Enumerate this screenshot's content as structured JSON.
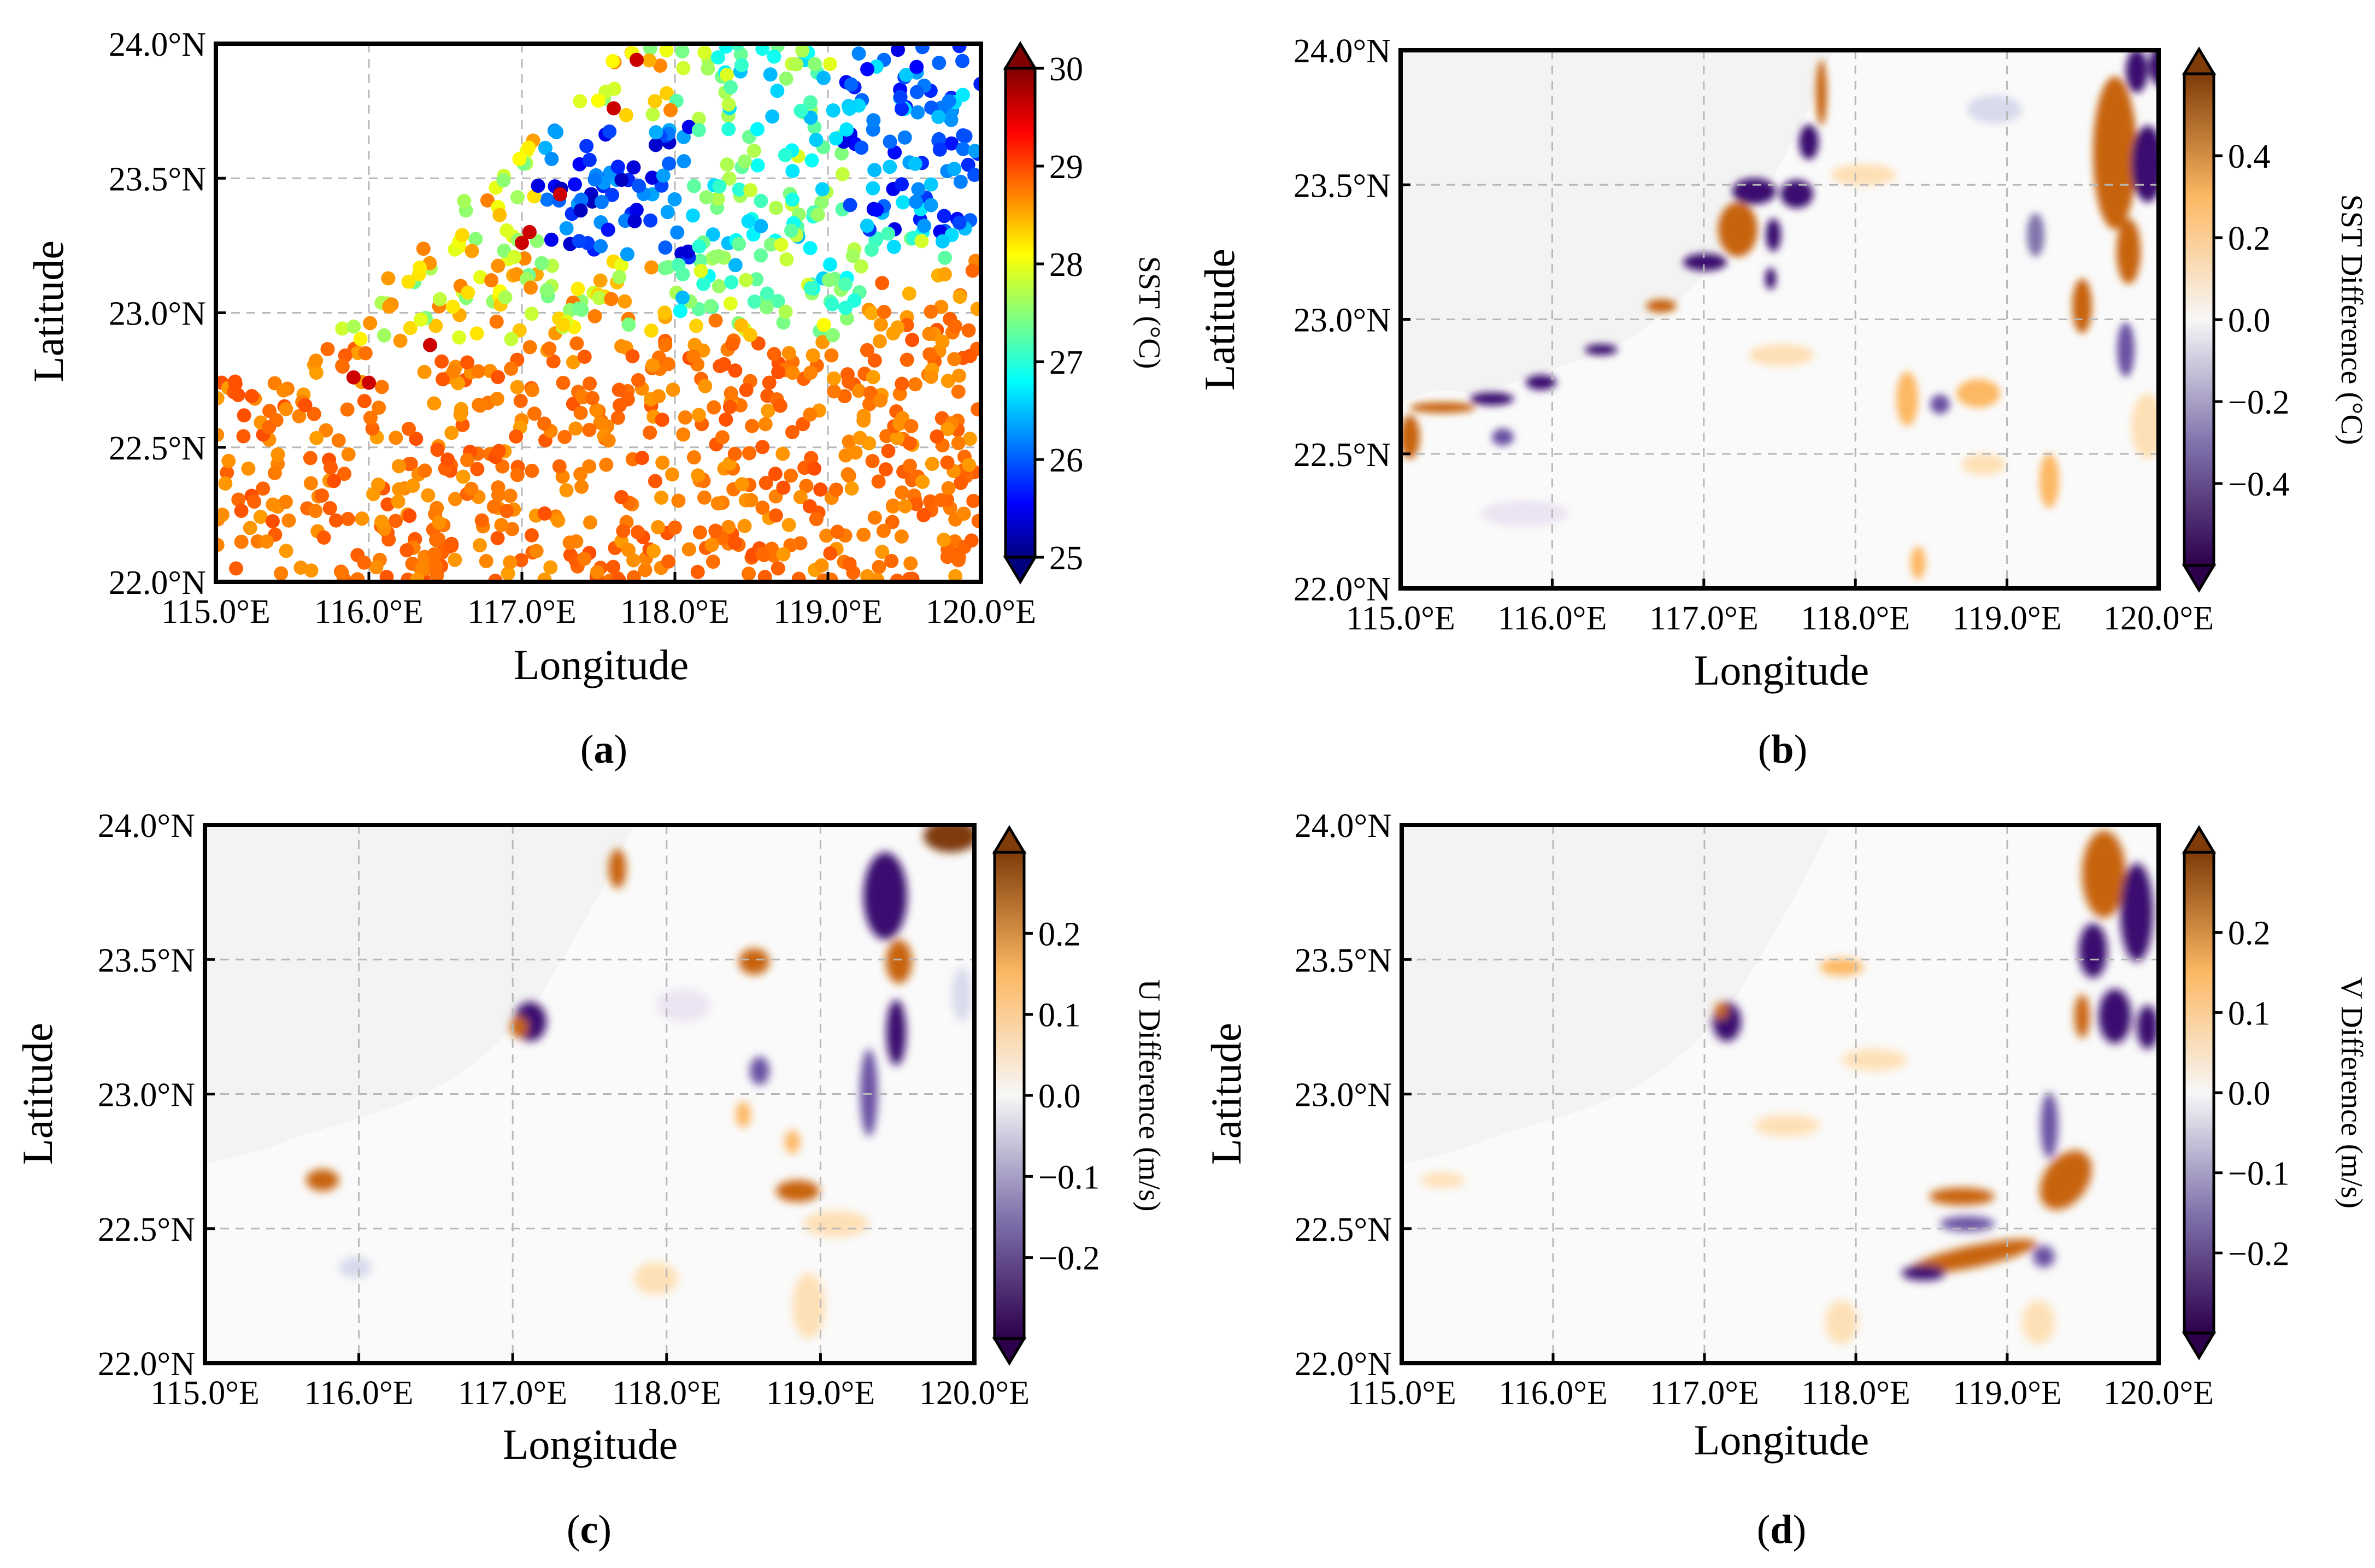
{
  "figure": {
    "panels": [
      {
        "id": "a",
        "caption_open": "(",
        "caption_letter": "a",
        "caption_close": ")",
        "x_label": "Longitude",
        "y_label": "Latitude",
        "x_ticks": [
          "115.0°E",
          "116.0°E",
          "117.0°E",
          "118.0°E",
          "119.0°E",
          "120.0°E"
        ],
        "y_ticks": [
          "22.0°N",
          "22.5°N",
          "23.0°N",
          "23.5°N",
          "24.0°N"
        ],
        "colorbar_label": "SST (°C)",
        "colorbar_ticks": [
          "25",
          "26",
          "27",
          "28",
          "29",
          "30"
        ],
        "colormap": "jet"
      },
      {
        "id": "b",
        "caption_open": "(",
        "caption_letter": "b",
        "caption_close": ")",
        "x_label": "Longitude",
        "y_label": "Latitude",
        "x_ticks": [
          "115.0°E",
          "116.0°E",
          "117.0°E",
          "118.0°E",
          "119.0°E",
          "120.0°E"
        ],
        "y_ticks": [
          "22.0°N",
          "22.5°N",
          "23.0°N",
          "23.5°N",
          "24.0°N"
        ],
        "colorbar_label": "SST Difference (°C)",
        "colorbar_ticks": [
          "−0.4",
          "−0.2",
          "0.0",
          "0.2",
          "0.4"
        ],
        "colormap": "PuOr_r"
      },
      {
        "id": "c",
        "caption_open": "(",
        "caption_letter": "c",
        "caption_close": ")",
        "x_label": "Longitude",
        "y_label": "Latitude",
        "x_ticks": [
          "115.0°E",
          "116.0°E",
          "117.0°E",
          "118.0°E",
          "119.0°E",
          "120.0°E"
        ],
        "y_ticks": [
          "22.0°N",
          "22.5°N",
          "23.0°N",
          "23.5°N",
          "24.0°N"
        ],
        "colorbar_label": "U Difference (m/s)",
        "colorbar_ticks": [
          "−0.2",
          "−0.1",
          "0.0",
          "0.1",
          "0.2"
        ],
        "colormap": "PuOr_r"
      },
      {
        "id": "d",
        "caption_open": "(",
        "caption_letter": "d",
        "caption_close": ")",
        "x_label": "Longitude",
        "y_label": "Latitude",
        "x_ticks": [
          "115.0°E",
          "116.0°E",
          "117.0°E",
          "118.0°E",
          "119.0°E",
          "120.0°E"
        ],
        "y_ticks": [
          "22.0°N",
          "22.5°N",
          "23.0°N",
          "23.5°N",
          "24.0°N"
        ],
        "colorbar_label": "V Difference (m/s)",
        "colorbar_ticks": [
          "−0.2",
          "−0.1",
          "0.0",
          "0.1",
          "0.2"
        ],
        "colormap": "PuOr_r"
      }
    ],
    "colors": {
      "land": "#f5f5f5",
      "grid": "#b8b8b8",
      "orange": "#c8640a",
      "purple": "#3b0f70"
    }
  }
}
